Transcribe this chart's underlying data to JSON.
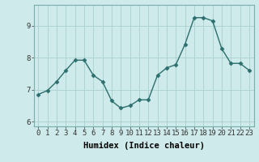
{
  "x": [
    0,
    1,
    2,
    3,
    4,
    5,
    6,
    7,
    8,
    9,
    10,
    11,
    12,
    13,
    14,
    15,
    16,
    17,
    18,
    19,
    20,
    21,
    22,
    23
  ],
  "y": [
    6.85,
    6.97,
    7.25,
    7.6,
    7.92,
    7.92,
    7.45,
    7.25,
    6.65,
    6.42,
    6.5,
    6.68,
    6.68,
    7.45,
    7.68,
    7.78,
    8.42,
    9.25,
    9.25,
    9.15,
    8.28,
    7.82,
    7.82,
    7.6
  ],
  "line_color": "#2d6e6e",
  "marker": "D",
  "markersize": 2.5,
  "linewidth": 1.0,
  "background_color": "#ceeaea",
  "grid_color": "#aacece",
  "xlabel": "Humidex (Indice chaleur)",
  "xlim": [
    -0.5,
    23.5
  ],
  "ylim": [
    5.85,
    9.65
  ],
  "yticks": [
    6,
    7,
    8,
    9
  ],
  "xlabel_fontsize": 7.5,
  "tick_fontsize": 6.5
}
